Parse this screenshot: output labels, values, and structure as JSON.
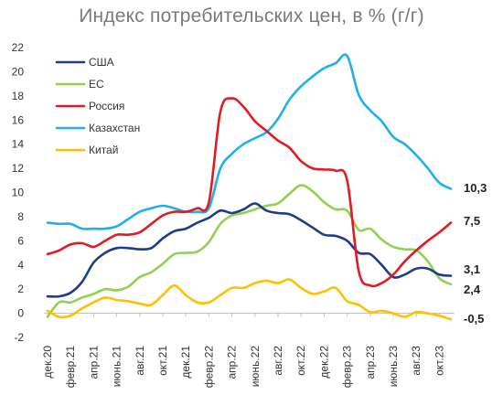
{
  "chart_data": {
    "type": "line",
    "title": "Индекс потребительских цен, в % (г/г)",
    "xlabel": "",
    "ylabel": "",
    "ylim": [
      -2,
      22
    ],
    "yticks": [
      -2,
      0,
      2,
      4,
      6,
      8,
      10,
      12,
      14,
      16,
      18,
      20,
      22
    ],
    "grid": false,
    "legend_position": "top-left",
    "x": [
      "дек.20",
      "янв.21",
      "февр.21",
      "мар.21",
      "апр.21",
      "май.21",
      "июнь.21",
      "июль.21",
      "авг.21",
      "сент.21",
      "окт.21",
      "нояб.21",
      "дек.21",
      "янв.22",
      "февр.22",
      "мар.22",
      "апр.22",
      "май.22",
      "июнь.22",
      "июль.22",
      "авг.22",
      "сент.22",
      "окт.22",
      "нояб.22",
      "дек.22",
      "янв.23",
      "февр.23",
      "мар.23",
      "апр.23",
      "май.23",
      "июнь.23",
      "июль.23",
      "авг.23",
      "сент.23",
      "окт.23",
      "нояб.23"
    ],
    "x_tick_labels": [
      "дек.20",
      "февр.21",
      "апр.21",
      "июнь.21",
      "авг.21",
      "окт.21",
      "дек.21",
      "февр.22",
      "апр.22",
      "июнь.22",
      "авг.22",
      "окт.22",
      "дек.22",
      "февр.23",
      "апр.23",
      "июнь.23",
      "авг.23",
      "окт.23"
    ],
    "series": [
      {
        "name": "США",
        "color": "#1f3c88",
        "end_label": "3,1",
        "values": [
          1.4,
          1.4,
          1.7,
          2.6,
          4.2,
          5.0,
          5.4,
          5.4,
          5.3,
          5.4,
          6.2,
          6.8,
          7.0,
          7.5,
          7.9,
          8.5,
          8.3,
          8.6,
          9.1,
          8.5,
          8.3,
          8.2,
          7.7,
          7.1,
          6.5,
          6.4,
          6.0,
          5.0,
          4.9,
          4.0,
          3.0,
          3.2,
          3.7,
          3.7,
          3.2,
          3.1
        ]
      },
      {
        "name": "ЕС",
        "color": "#92d050",
        "end_label": "2,4",
        "values": [
          -0.3,
          0.9,
          0.9,
          1.3,
          1.6,
          2.0,
          1.9,
          2.2,
          3.0,
          3.4,
          4.1,
          4.9,
          5.0,
          5.1,
          5.9,
          7.4,
          8.1,
          8.3,
          8.6,
          8.9,
          9.1,
          9.9,
          10.6,
          10.1,
          9.2,
          8.6,
          8.5,
          6.9,
          7.0,
          6.1,
          5.5,
          5.3,
          5.2,
          4.3,
          2.9,
          2.4
        ]
      },
      {
        "name": "Россия",
        "color": "#e21b22",
        "end_label": "7,5",
        "values": [
          4.9,
          5.2,
          5.7,
          5.8,
          5.5,
          6.0,
          6.5,
          6.5,
          6.7,
          7.4,
          8.1,
          8.4,
          8.4,
          8.7,
          9.2,
          16.7,
          17.8,
          17.1,
          15.9,
          15.1,
          14.3,
          13.7,
          12.6,
          12.0,
          11.9,
          11.8,
          11.0,
          3.5,
          2.3,
          2.5,
          3.2,
          4.3,
          5.2,
          6.0,
          6.7,
          7.5
        ]
      },
      {
        "name": "Казахстан",
        "color": "#1fb0e6",
        "end_label": "10,3",
        "values": [
          7.5,
          7.4,
          7.4,
          7.0,
          7.0,
          7.0,
          7.2,
          7.8,
          8.4,
          8.7,
          8.9,
          8.7,
          8.4,
          8.4,
          8.7,
          12.0,
          13.2,
          14.0,
          14.5,
          15.0,
          16.1,
          17.7,
          18.8,
          19.6,
          20.3,
          20.7,
          21.3,
          18.1,
          16.8,
          15.9,
          14.6,
          14.0,
          13.1,
          12.0,
          10.8,
          10.3
        ]
      },
      {
        "name": "Китай",
        "color": "#ffc000",
        "end_label": "-0,5",
        "values": [
          0.2,
          -0.3,
          -0.2,
          0.4,
          0.9,
          1.3,
          1.1,
          1.0,
          0.8,
          0.7,
          1.5,
          2.3,
          1.5,
          0.9,
          0.9,
          1.5,
          2.1,
          2.1,
          2.5,
          2.7,
          2.5,
          2.8,
          2.1,
          1.6,
          1.8,
          2.1,
          1.0,
          0.7,
          0.1,
          0.2,
          0.0,
          -0.3,
          0.1,
          0.0,
          -0.2,
          -0.5
        ]
      }
    ]
  }
}
